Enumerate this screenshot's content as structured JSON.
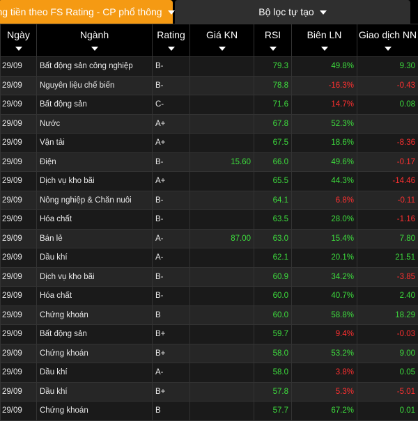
{
  "tabs": {
    "active_label": "ng tiền theo FS Rating - CP phổ thông",
    "filter_label": "Bộ lọc tự tạo"
  },
  "columns": [
    "Ngày",
    "Ngành",
    "Rating",
    "Giá KN",
    "RSI",
    "Biên LN",
    "Giao dịch NN"
  ],
  "rows": [
    {
      "date": "29/09",
      "industry": "Bất động sản công nghiệp",
      "rating": "B-",
      "price": "",
      "rsi": "79.3",
      "margin": "49.8%",
      "margin_color": "green",
      "nn": "9.30",
      "nn_color": "green"
    },
    {
      "date": "29/09",
      "industry": "Nguyên liệu chế biến",
      "rating": "B-",
      "price": "",
      "rsi": "78.8",
      "margin": "-16.3%",
      "margin_color": "red",
      "nn": "-0.43",
      "nn_color": "red"
    },
    {
      "date": "29/09",
      "industry": "Bất động sản",
      "rating": "C-",
      "price": "",
      "rsi": "71.6",
      "margin": "14.7%",
      "margin_color": "red",
      "nn": "0.08",
      "nn_color": "green"
    },
    {
      "date": "29/09",
      "industry": "Nước",
      "rating": "A+",
      "price": "",
      "rsi": "67.8",
      "margin": "52.3%",
      "margin_color": "green",
      "nn": "",
      "nn_color": "green"
    },
    {
      "date": "29/09",
      "industry": "Vận tải",
      "rating": "A+",
      "price": "",
      "rsi": "67.5",
      "margin": "18.6%",
      "margin_color": "green",
      "nn": "-8.36",
      "nn_color": "red"
    },
    {
      "date": "29/09",
      "industry": "Điện",
      "rating": "B-",
      "price": "15.60",
      "rsi": "66.0",
      "margin": "49.6%",
      "margin_color": "green",
      "nn": "-0.17",
      "nn_color": "red"
    },
    {
      "date": "29/09",
      "industry": "Dịch vụ kho bãi",
      "rating": "A+",
      "price": "",
      "rsi": "65.5",
      "margin": "44.3%",
      "margin_color": "green",
      "nn": "-14.46",
      "nn_color": "red"
    },
    {
      "date": "29/09",
      "industry": "Nông nghiệp & Chăn nuôi",
      "rating": "B-",
      "price": "",
      "rsi": "64.1",
      "margin": "6.8%",
      "margin_color": "red",
      "nn": "-0.11",
      "nn_color": "red"
    },
    {
      "date": "29/09",
      "industry": "Hóa chất",
      "rating": "B-",
      "price": "",
      "rsi": "63.5",
      "margin": "28.0%",
      "margin_color": "green",
      "nn": "-1.16",
      "nn_color": "red"
    },
    {
      "date": "29/09",
      "industry": "Bán lẻ",
      "rating": "A-",
      "price": "87.00",
      "rsi": "63.0",
      "margin": "15.4%",
      "margin_color": "green",
      "nn": "7.80",
      "nn_color": "green"
    },
    {
      "date": "29/09",
      "industry": "Dầu khí",
      "rating": "A-",
      "price": "",
      "rsi": "62.1",
      "margin": "20.1%",
      "margin_color": "green",
      "nn": "21.51",
      "nn_color": "green"
    },
    {
      "date": "29/09",
      "industry": "Dịch vụ kho bãi",
      "rating": "B-",
      "price": "",
      "rsi": "60.9",
      "margin": "34.2%",
      "margin_color": "green",
      "nn": "-3.85",
      "nn_color": "red"
    },
    {
      "date": "29/09",
      "industry": "Hóa chất",
      "rating": "B-",
      "price": "",
      "rsi": "60.0",
      "margin": "40.7%",
      "margin_color": "green",
      "nn": "2.40",
      "nn_color": "green"
    },
    {
      "date": "29/09",
      "industry": "Chứng khoán",
      "rating": "B",
      "price": "",
      "rsi": "60.0",
      "margin": "58.8%",
      "margin_color": "green",
      "nn": "18.29",
      "nn_color": "green"
    },
    {
      "date": "29/09",
      "industry": "Bất động sản",
      "rating": "B+",
      "price": "",
      "rsi": "59.7",
      "margin": "9.4%",
      "margin_color": "red",
      "nn": "-0.03",
      "nn_color": "red"
    },
    {
      "date": "29/09",
      "industry": "Chứng khoán",
      "rating": "B+",
      "price": "",
      "rsi": "58.0",
      "margin": "53.2%",
      "margin_color": "green",
      "nn": "9.00",
      "nn_color": "green"
    },
    {
      "date": "29/09",
      "industry": "Dầu khí",
      "rating": "A-",
      "price": "",
      "rsi": "58.0",
      "margin": "3.8%",
      "margin_color": "red",
      "nn": "0.05",
      "nn_color": "green"
    },
    {
      "date": "29/09",
      "industry": "Dầu khí",
      "rating": "B+",
      "price": "",
      "rsi": "57.8",
      "margin": "5.3%",
      "margin_color": "red",
      "nn": "-5.01",
      "nn_color": "red"
    },
    {
      "date": "29/09",
      "industry": "Chứng khoán",
      "rating": "B",
      "price": "",
      "rsi": "57.7",
      "margin": "67.2%",
      "margin_color": "green",
      "nn": "0.01",
      "nn_color": "green"
    }
  ]
}
